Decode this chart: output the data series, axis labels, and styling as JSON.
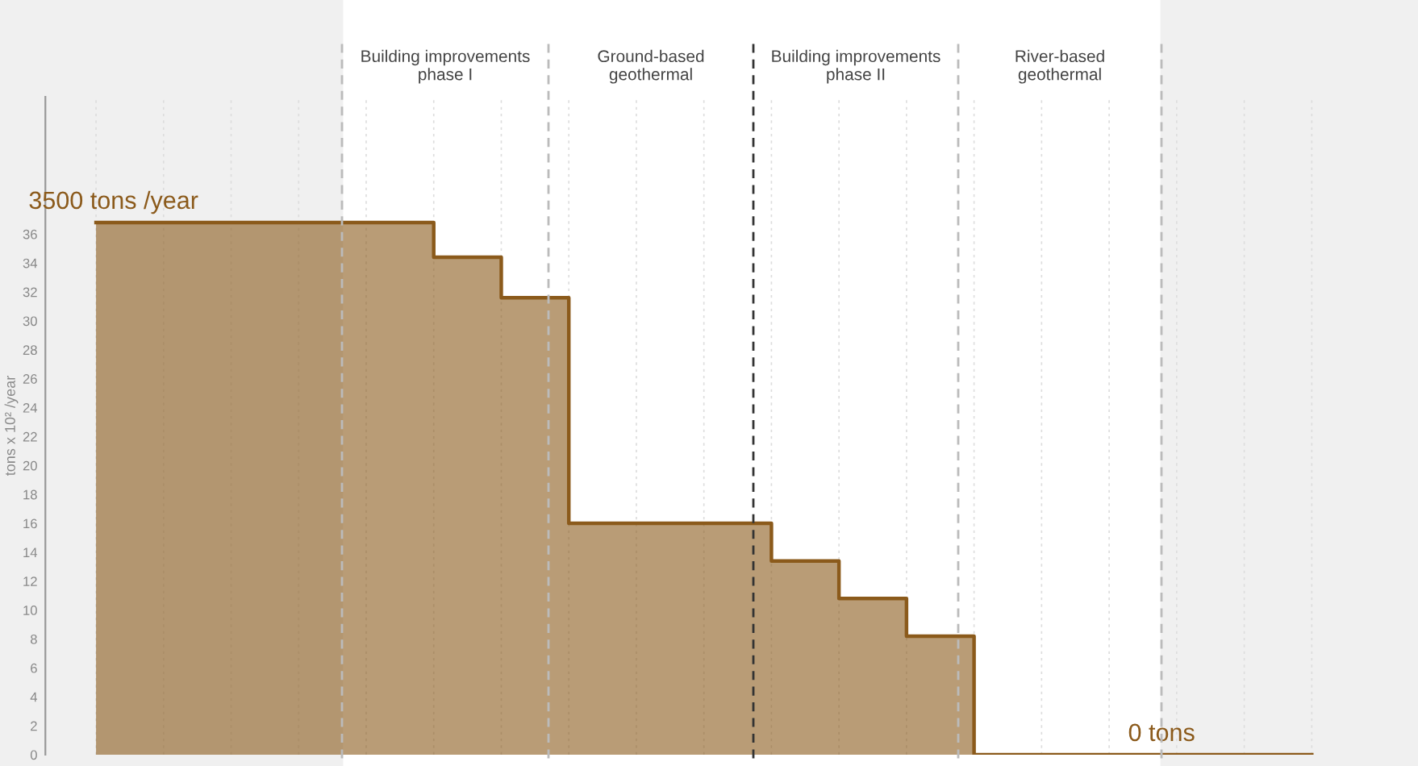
{
  "chart_data": {
    "type": "step",
    "categories": [
      null,
      null,
      null,
      null,
      null,
      null,
      null,
      null,
      null,
      null,
      null,
      null,
      null,
      null,
      null,
      null,
      null,
      null,
      null
    ],
    "series": [
      {
        "color": "#8b5a1b",
        "values": [
          36.8,
          36.8,
          36.8,
          36.8,
          36.8,
          34.4,
          31.6,
          16,
          16,
          16,
          13.4,
          10.8,
          8.2,
          0,
          0,
          0,
          0,
          0,
          0
        ]
      }
    ],
    "ylabel": "tons x 10² /year",
    "ylim": [
      0,
      45.5
    ],
    "yticks": [
      0,
      2,
      4,
      6,
      8,
      10,
      12,
      14,
      16,
      18,
      20,
      22,
      24,
      26,
      28,
      30,
      32,
      34,
      36
    ],
    "tick_labels": "y",
    "grid": "x",
    "annotations": [
      "Building improvements\nphase I",
      "Ground-based\ngeothermal",
      "Building improvements\nphase II",
      "River-based\ngeothermal",
      {
        "text": "3500 tons /year",
        "y": 36.8
      },
      {
        "text": "0 tons",
        "y": 0
      }
    ]
  }
}
